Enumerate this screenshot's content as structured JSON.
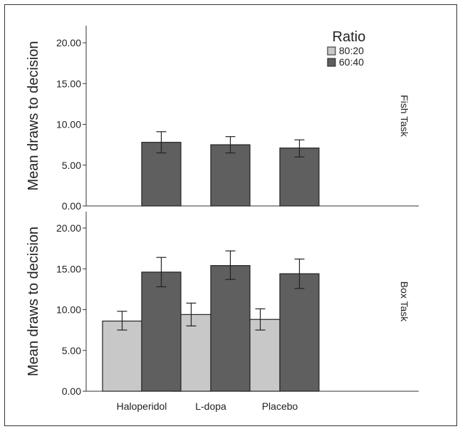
{
  "chart_data": {
    "type": "bar",
    "legend": {
      "title": "Ratio",
      "placement": "top-right",
      "entries": [
        {
          "name": "80:20",
          "color": "#c8c8c8"
        },
        {
          "name": "60:40",
          "color": "#5f5f5f"
        }
      ]
    },
    "categories": [
      "Haloperidol",
      "L-dopa",
      "Placebo"
    ],
    "ylim": [
      0,
      22
    ],
    "yticks": [
      "0.00",
      "5.00",
      "10.00",
      "15.00",
      "20.00"
    ],
    "panels": [
      {
        "label": "Fish Task",
        "ylabel": "Mean draws to decision",
        "series": [
          {
            "name": "80:20",
            "values": [
              null,
              null,
              null
            ],
            "err_low": [
              null,
              null,
              null
            ],
            "err_high": [
              null,
              null,
              null
            ]
          },
          {
            "name": "60:40",
            "values": [
              7.8,
              7.5,
              7.1
            ],
            "err_low": [
              6.5,
              6.5,
              6.0
            ],
            "err_high": [
              9.1,
              8.5,
              8.1
            ]
          }
        ]
      },
      {
        "label": "Box Task",
        "ylabel": "Mean draws to decision",
        "series": [
          {
            "name": "80:20",
            "values": [
              8.6,
              9.4,
              8.8
            ],
            "err_low": [
              7.5,
              8.0,
              7.5
            ],
            "err_high": [
              9.8,
              10.8,
              10.1
            ]
          },
          {
            "name": "60:40",
            "values": [
              14.6,
              15.4,
              14.4
            ],
            "err_low": [
              12.8,
              13.7,
              12.6
            ],
            "err_high": [
              16.4,
              17.2,
              16.2
            ]
          }
        ]
      }
    ]
  }
}
